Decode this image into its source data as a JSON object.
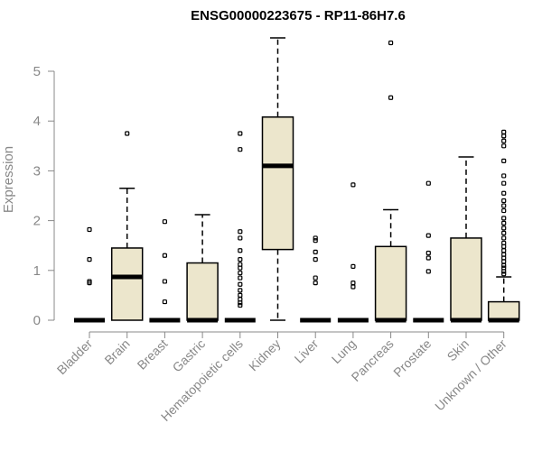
{
  "chart_data": {
    "type": "boxplot",
    "title": "ENSG00000223675 - RP11-86H7.6",
    "ylabel": "Expression",
    "ylim": [
      0,
      5.7
    ],
    "yticks": [
      0,
      1,
      2,
      3,
      4,
      5
    ],
    "box_color": "#ECE6CC",
    "categories": [
      "Bladder",
      "Brain",
      "Breast",
      "Gastric",
      "Hematopoietic cells",
      "Kidney",
      "Liver",
      "Lung",
      "Pancreas",
      "Prostate",
      "Skin",
      "Unknown / Other"
    ],
    "boxes": [
      {
        "q1": 0,
        "median": 0,
        "q3": 0,
        "whisker_low": 0,
        "whisker_high": 0,
        "outliers": [
          1.82,
          1.22,
          0.78,
          0.75
        ]
      },
      {
        "q1": 0,
        "median": 0.87,
        "q3": 1.45,
        "whisker_low": 0,
        "whisker_high": 2.65,
        "outliers": [
          3.75
        ]
      },
      {
        "q1": 0,
        "median": 0,
        "q3": 0,
        "whisker_low": 0,
        "whisker_high": 0,
        "outliers": [
          1.98,
          1.3,
          0.78,
          0.37
        ]
      },
      {
        "q1": 0,
        "median": 0,
        "q3": 1.15,
        "whisker_low": 0,
        "whisker_high": 2.12,
        "outliers": []
      },
      {
        "q1": 0,
        "median": 0,
        "q3": 0,
        "whisker_low": 0,
        "whisker_high": 0,
        "outliers": [
          3.75,
          3.43,
          1.78,
          1.65,
          1.4,
          1.22,
          1.12,
          1.05,
          0.95,
          0.85,
          0.72,
          0.6,
          0.5,
          0.42,
          0.35,
          0.3
        ]
      },
      {
        "q1": 1.42,
        "median": 3.1,
        "q3": 4.08,
        "whisker_low": 0,
        "whisker_high": 5.67,
        "outliers": []
      },
      {
        "q1": 0,
        "median": 0,
        "q3": 0,
        "whisker_low": 0,
        "whisker_high": 0,
        "outliers": [
          1.65,
          1.6,
          1.37,
          1.22,
          0.85,
          0.75
        ]
      },
      {
        "q1": 0,
        "median": 0,
        "q3": 0,
        "whisker_low": 0,
        "whisker_high": 0,
        "outliers": [
          2.72,
          1.08,
          0.75,
          0.67
        ]
      },
      {
        "q1": 0,
        "median": 0,
        "q3": 1.48,
        "whisker_low": 0,
        "whisker_high": 2.22,
        "outliers": [
          5.57,
          4.47
        ]
      },
      {
        "q1": 0,
        "median": 0,
        "q3": 0,
        "whisker_low": 0,
        "whisker_high": 0,
        "outliers": [
          2.75,
          1.7,
          1.35,
          1.25,
          0.98
        ]
      },
      {
        "q1": 0,
        "median": 0,
        "q3": 1.65,
        "whisker_low": 0,
        "whisker_high": 3.28,
        "outliers": []
      },
      {
        "q1": 0,
        "median": 0,
        "q3": 0.37,
        "whisker_low": 0,
        "whisker_high": 0.87,
        "outliers": [
          3.78,
          3.7,
          3.6,
          3.5,
          3.2,
          2.9,
          2.75,
          2.55,
          2.4,
          2.3,
          2.2,
          2.05,
          1.95,
          1.85,
          1.75,
          1.65,
          1.55,
          1.48,
          1.4,
          1.32,
          1.25,
          1.18,
          1.1,
          1.05,
          0.98,
          0.93
        ]
      }
    ]
  }
}
